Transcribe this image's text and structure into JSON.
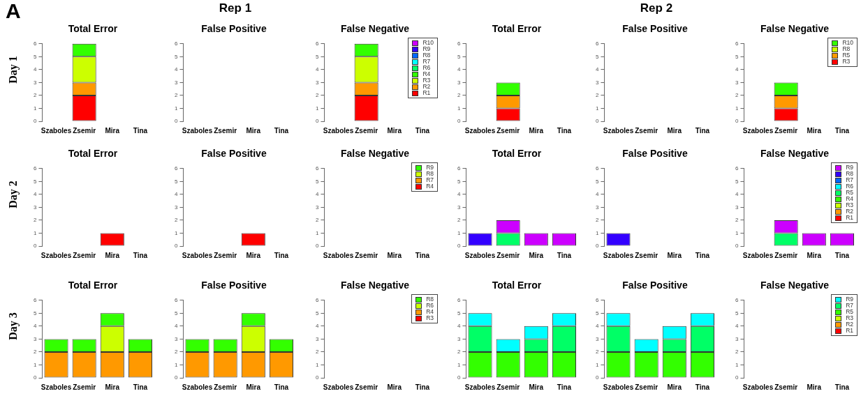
{
  "chart_data": [
    {
      "type": "bar",
      "title": "Total Error",
      "annotations": [
        "A",
        "Day 1"
      ],
      "categories": [
        "Szaboles",
        "Zsemir",
        "Mira",
        "Tina"
      ],
      "stacked": true,
      "ylim": [
        0,
        6
      ],
      "yticks": [
        0,
        1,
        2,
        3,
        4,
        5,
        6
      ],
      "grid": false,
      "legend": false,
      "series": [
        {
          "color": "#ff0000",
          "values": [
            0,
            2,
            0,
            0
          ]
        },
        {
          "color": "#ff9900",
          "values": [
            0,
            1,
            0,
            0
          ]
        },
        {
          "color": "#ccff00",
          "values": [
            0,
            2,
            0,
            0
          ]
        },
        {
          "color": "#33ff00",
          "values": [
            0,
            1,
            0,
            0
          ]
        }
      ]
    },
    {
      "type": "bar",
      "title": "False Positive",
      "annotations": [
        "Rep 1"
      ],
      "categories": [
        "Szaboles",
        "Zsemir",
        "Mira",
        "Tina"
      ],
      "stacked": true,
      "ylim": [
        0,
        6
      ],
      "yticks": [
        0,
        1,
        2,
        3,
        4,
        5,
        6
      ],
      "grid": false,
      "legend": false,
      "series": [
        {
          "values": [
            0,
            0,
            0,
            0
          ]
        }
      ]
    },
    {
      "type": "bar",
      "title": "False Negative",
      "categories": [
        "Szaboles",
        "Zsemir",
        "Mira",
        "Tina"
      ],
      "stacked": true,
      "ylim": [
        0,
        6
      ],
      "yticks": [
        0,
        1,
        2,
        3,
        4,
        5,
        6
      ],
      "grid": false,
      "legend": "top right",
      "series": [
        {
          "name": "R1",
          "color": "#ff0000",
          "values": [
            0,
            2,
            0,
            0
          ]
        },
        {
          "name": "R2",
          "color": "#ff9900",
          "values": [
            0,
            1,
            0,
            0
          ]
        },
        {
          "name": "R3",
          "color": "#ccff00",
          "values": [
            0,
            2,
            0,
            0
          ]
        },
        {
          "name": "R4",
          "color": "#33ff00",
          "values": [
            0,
            1,
            0,
            0
          ]
        },
        {
          "name": "R6",
          "color": "#00ff66",
          "values": [
            0,
            0,
            0,
            0
          ]
        },
        {
          "name": "R7",
          "color": "#00ffff",
          "values": [
            0,
            0,
            0,
            0
          ]
        },
        {
          "name": "R8",
          "color": "#0066ff",
          "values": [
            0,
            0,
            0,
            0
          ]
        },
        {
          "name": "R9",
          "color": "#3300ff",
          "values": [
            0,
            0,
            0,
            0
          ]
        },
        {
          "name": "R10",
          "color": "#cc00ff",
          "values": [
            0,
            0,
            0,
            0
          ]
        }
      ]
    },
    {
      "type": "bar",
      "title": "Total Error",
      "categories": [
        "Szaboles",
        "Zsemir",
        "Mira",
        "Tina"
      ],
      "stacked": true,
      "ylim": [
        0,
        6
      ],
      "yticks": [
        0,
        1,
        2,
        3,
        4,
        5,
        6
      ],
      "grid": false,
      "legend": false,
      "series": [
        {
          "color": "#ff0000",
          "values": [
            0,
            1,
            0,
            0
          ]
        },
        {
          "color": "#ff9900",
          "values": [
            0,
            1,
            0,
            0
          ]
        },
        {
          "color": "#33ff00",
          "values": [
            0,
            1,
            0,
            0
          ]
        }
      ]
    },
    {
      "type": "bar",
      "title": "False Positive",
      "annotations": [
        "Rep 2"
      ],
      "categories": [
        "Szaboles",
        "Zsemir",
        "Mira",
        "Tina"
      ],
      "stacked": true,
      "ylim": [
        0,
        6
      ],
      "yticks": [
        0,
        1,
        2,
        3,
        4,
        5,
        6
      ],
      "grid": false,
      "legend": false,
      "series": [
        {
          "values": [
            0,
            0,
            0,
            0
          ]
        }
      ]
    },
    {
      "type": "bar",
      "title": "False Negative",
      "categories": [
        "Szaboles",
        "Zsemir",
        "Mira",
        "Tina"
      ],
      "stacked": true,
      "ylim": [
        0,
        6
      ],
      "yticks": [
        0,
        1,
        2,
        3,
        4,
        5,
        6
      ],
      "grid": false,
      "legend": "top right",
      "series": [
        {
          "name": "R3",
          "color": "#ff0000",
          "values": [
            0,
            1,
            0,
            0
          ]
        },
        {
          "name": "R5",
          "color": "#ff9900",
          "values": [
            0,
            1,
            0,
            0
          ]
        },
        {
          "name": "R8",
          "color": "#ccff00",
          "values": [
            0,
            0,
            0,
            0
          ]
        },
        {
          "name": "R10",
          "color": "#33ff00",
          "values": [
            0,
            1,
            0,
            0
          ]
        }
      ]
    },
    {
      "type": "bar",
      "title": "Total Error",
      "annotations": [
        "Day 2"
      ],
      "categories": [
        "Szaboles",
        "Zsemir",
        "Mira",
        "Tina"
      ],
      "stacked": true,
      "ylim": [
        0,
        6
      ],
      "yticks": [
        0,
        1,
        2,
        3,
        4,
        5,
        6
      ],
      "grid": false,
      "legend": false,
      "series": [
        {
          "color": "#ff0000",
          "values": [
            0,
            0,
            1,
            0
          ]
        }
      ]
    },
    {
      "type": "bar",
      "title": "False Positive",
      "categories": [
        "Szaboles",
        "Zsemir",
        "Mira",
        "Tina"
      ],
      "stacked": true,
      "ylim": [
        0,
        6
      ],
      "yticks": [
        0,
        1,
        2,
        3,
        4,
        5,
        6
      ],
      "grid": false,
      "legend": false,
      "series": [
        {
          "color": "#ff0000",
          "values": [
            0,
            0,
            1,
            0
          ]
        }
      ]
    },
    {
      "type": "bar",
      "title": "False Negative",
      "categories": [
        "Szaboles",
        "Zsemir",
        "Mira",
        "Tina"
      ],
      "stacked": true,
      "ylim": [
        0,
        6
      ],
      "yticks": [
        0,
        1,
        2,
        3,
        4,
        5,
        6
      ],
      "grid": false,
      "legend": "top right",
      "series": [
        {
          "name": "R4",
          "color": "#ff0000",
          "values": [
            0,
            0,
            0,
            0
          ]
        },
        {
          "name": "R7",
          "color": "#ff9900",
          "values": [
            0,
            0,
            0,
            0
          ]
        },
        {
          "name": "R8",
          "color": "#ccff00",
          "values": [
            0,
            0,
            0,
            0
          ]
        },
        {
          "name": "R9",
          "color": "#33ff00",
          "values": [
            0,
            0,
            0,
            0
          ]
        }
      ]
    },
    {
      "type": "bar",
      "title": "Total Error",
      "categories": [
        "Szaboles",
        "Zsemir",
        "Mira",
        "Tina"
      ],
      "stacked": true,
      "ylim": [
        0,
        6
      ],
      "yticks": [
        0,
        1,
        2,
        3,
        4,
        5,
        6
      ],
      "grid": false,
      "legend": false,
      "series": [
        {
          "color": "#00ff66",
          "values": [
            0,
            1,
            0,
            0
          ]
        },
        {
          "color": "#3300ff",
          "values": [
            1,
            0,
            0,
            0
          ]
        },
        {
          "color": "#cc00ff",
          "values": [
            0,
            1,
            1,
            1
          ]
        }
      ]
    },
    {
      "type": "bar",
      "title": "False Positive",
      "categories": [
        "Szaboles",
        "Zsemir",
        "Mira",
        "Tina"
      ],
      "stacked": true,
      "ylim": [
        0,
        6
      ],
      "yticks": [
        0,
        1,
        2,
        3,
        4,
        5,
        6
      ],
      "grid": false,
      "legend": false,
      "series": [
        {
          "color": "#3300ff",
          "values": [
            1,
            0,
            0,
            0
          ]
        }
      ]
    },
    {
      "type": "bar",
      "title": "False Negative",
      "categories": [
        "Szaboles",
        "Zsemir",
        "Mira",
        "Tina"
      ],
      "stacked": true,
      "ylim": [
        0,
        6
      ],
      "yticks": [
        0,
        1,
        2,
        3,
        4,
        5,
        6
      ],
      "grid": false,
      "legend": "top right",
      "series": [
        {
          "name": "R1",
          "color": "#ff0000",
          "values": [
            0,
            0,
            0,
            0
          ]
        },
        {
          "name": "R2",
          "color": "#ff9900",
          "values": [
            0,
            0,
            0,
            0
          ]
        },
        {
          "name": "R3",
          "color": "#ccff00",
          "values": [
            0,
            0,
            0,
            0
          ]
        },
        {
          "name": "R4",
          "color": "#33ff00",
          "values": [
            0,
            0,
            0,
            0
          ]
        },
        {
          "name": "R5",
          "color": "#00ff66",
          "values": [
            0,
            1,
            0,
            0
          ]
        },
        {
          "name": "R6",
          "color": "#00ffff",
          "values": [
            0,
            0,
            0,
            0
          ]
        },
        {
          "name": "R7",
          "color": "#0066ff",
          "values": [
            0,
            0,
            0,
            0
          ]
        },
        {
          "name": "R8",
          "color": "#3300ff",
          "values": [
            0,
            0,
            0,
            0
          ]
        },
        {
          "name": "R9",
          "color": "#cc00ff",
          "values": [
            0,
            1,
            1,
            1
          ]
        }
      ]
    },
    {
      "type": "bar",
      "title": "Total Error",
      "annotations": [
        "Day 3"
      ],
      "categories": [
        "Szaboles",
        "Zsemir",
        "Mira",
        "Tina"
      ],
      "stacked": true,
      "ylim": [
        0,
        6
      ],
      "yticks": [
        0,
        1,
        2,
        3,
        4,
        5,
        6
      ],
      "grid": false,
      "legend": false,
      "series": [
        {
          "color": "#ff9900",
          "values": [
            2,
            2,
            2,
            2
          ]
        },
        {
          "color": "#ccff00",
          "values": [
            0,
            0,
            2,
            0
          ]
        },
        {
          "color": "#33ff00",
          "values": [
            1,
            1,
            1,
            1
          ]
        }
      ]
    },
    {
      "type": "bar",
      "title": "False Positive",
      "categories": [
        "Szaboles",
        "Zsemir",
        "Mira",
        "Tina"
      ],
      "stacked": true,
      "ylim": [
        0,
        6
      ],
      "yticks": [
        0,
        1,
        2,
        3,
        4,
        5,
        6
      ],
      "grid": false,
      "legend": false,
      "series": [
        {
          "color": "#ff9900",
          "values": [
            2,
            2,
            2,
            2
          ]
        },
        {
          "color": "#ccff00",
          "values": [
            0,
            0,
            2,
            0
          ]
        },
        {
          "color": "#33ff00",
          "values": [
            1,
            1,
            1,
            1
          ]
        }
      ]
    },
    {
      "type": "bar",
      "title": "False Negative",
      "categories": [
        "Szaboles",
        "Zsemir",
        "Mira",
        "Tina"
      ],
      "stacked": true,
      "ylim": [
        0,
        6
      ],
      "yticks": [
        0,
        1,
        2,
        3,
        4,
        5,
        6
      ],
      "grid": false,
      "legend": "top right",
      "series": [
        {
          "name": "R3",
          "color": "#ff0000",
          "values": [
            0,
            0,
            0,
            0
          ]
        },
        {
          "name": "R4",
          "color": "#ff9900",
          "values": [
            0,
            0,
            0,
            0
          ]
        },
        {
          "name": "R6",
          "color": "#ccff00",
          "values": [
            0,
            0,
            0,
            0
          ]
        },
        {
          "name": "R8",
          "color": "#33ff00",
          "values": [
            0,
            0,
            0,
            0
          ]
        }
      ]
    },
    {
      "type": "bar",
      "title": "Total Error",
      "categories": [
        "Szaboles",
        "Zsemir",
        "Mira",
        "Tina"
      ],
      "stacked": true,
      "ylim": [
        0,
        6
      ],
      "yticks": [
        0,
        1,
        2,
        3,
        4,
        5,
        6
      ],
      "grid": false,
      "legend": false,
      "series": [
        {
          "color": "#33ff00",
          "values": [
            2,
            2,
            2,
            2
          ]
        },
        {
          "color": "#00ff66",
          "values": [
            2,
            0,
            1,
            2
          ]
        },
        {
          "color": "#00ffff",
          "values": [
            1,
            1,
            1,
            1
          ]
        }
      ]
    },
    {
      "type": "bar",
      "title": "False Positive",
      "categories": [
        "Szaboles",
        "Zsemir",
        "Mira",
        "Tina"
      ],
      "stacked": true,
      "ylim": [
        0,
        6
      ],
      "yticks": [
        0,
        1,
        2,
        3,
        4,
        5,
        6
      ],
      "grid": false,
      "legend": false,
      "series": [
        {
          "color": "#33ff00",
          "values": [
            2,
            2,
            2,
            2
          ]
        },
        {
          "color": "#00ff66",
          "values": [
            2,
            0,
            1,
            2
          ]
        },
        {
          "color": "#00ffff",
          "values": [
            1,
            1,
            1,
            1
          ]
        }
      ]
    },
    {
      "type": "bar",
      "title": "False Negative",
      "categories": [
        "Szaboles",
        "Zsemir",
        "Mira",
        "Tina"
      ],
      "stacked": true,
      "ylim": [
        0,
        6
      ],
      "yticks": [
        0,
        1,
        2,
        3,
        4,
        5,
        6
      ],
      "grid": false,
      "legend": "top right",
      "series": [
        {
          "name": "R1",
          "color": "#ff0000",
          "values": [
            0,
            0,
            0,
            0
          ]
        },
        {
          "name": "R2",
          "color": "#ff9900",
          "values": [
            0,
            0,
            0,
            0
          ]
        },
        {
          "name": "R3",
          "color": "#ccff00",
          "values": [
            0,
            0,
            0,
            0
          ]
        },
        {
          "name": "R5",
          "color": "#33ff00",
          "values": [
            0,
            0,
            0,
            0
          ]
        },
        {
          "name": "R7",
          "color": "#00ff66",
          "values": [
            0,
            0,
            0,
            0
          ]
        },
        {
          "name": "R9",
          "color": "#00ffff",
          "values": [
            0,
            0,
            0,
            0
          ]
        }
      ]
    }
  ]
}
